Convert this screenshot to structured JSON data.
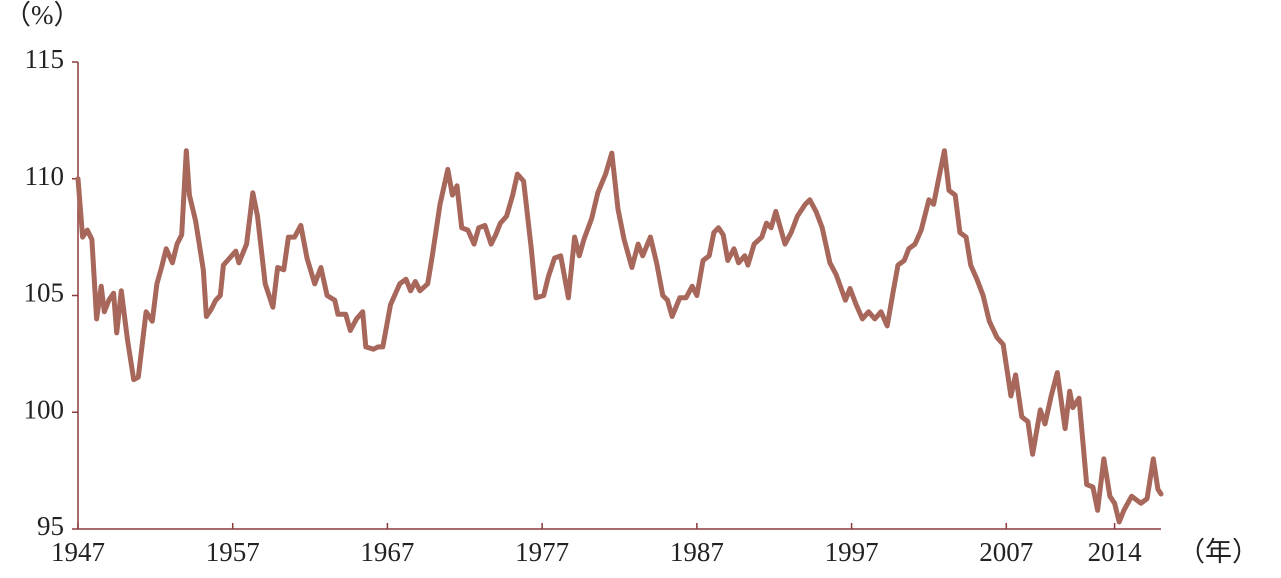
{
  "chart_data": {
    "type": "line",
    "y_label": "（%）",
    "x_label": "（年）",
    "xlim": [
      1947,
      2017
    ],
    "xticks": [
      1947,
      1957,
      1967,
      1977,
      1987,
      1997,
      2007,
      2014
    ],
    "ylim": [
      95,
      115
    ],
    "yticks": [
      95,
      100,
      105,
      110,
      115
    ],
    "series": [
      {
        "color": "#a8675b",
        "x": [
          1947.0,
          1947.3,
          1947.6,
          1947.9,
          1948.2,
          1948.5,
          1948.7,
          1949.0,
          1949.3,
          1949.5,
          1949.8,
          1950.2,
          1950.6,
          1950.9,
          1951.4,
          1951.8,
          1952.1,
          1952.4,
          1952.7,
          1953.1,
          1953.4,
          1953.7,
          1954.0,
          1954.2,
          1954.6,
          1955.1,
          1955.3,
          1955.6,
          1955.9,
          1956.2,
          1956.4,
          1956.8,
          1957.2,
          1957.4,
          1957.9,
          1958.3,
          1958.6,
          1959.1,
          1959.6,
          1959.9,
          1960.3,
          1960.6,
          1961.0,
          1961.4,
          1961.8,
          1962.3,
          1962.7,
          1963.1,
          1963.6,
          1963.8,
          1964.3,
          1964.6,
          1965.0,
          1965.4,
          1965.6,
          1966.1,
          1966.4,
          1966.7,
          1967.2,
          1967.4,
          1967.8,
          1968.2,
          1968.5,
          1968.8,
          1969.1,
          1969.6,
          1969.9,
          1970.4,
          1970.9,
          1971.2,
          1971.5,
          1971.8,
          1972.2,
          1972.6,
          1972.9,
          1973.3,
          1973.7,
          1974.0,
          1974.3,
          1974.7,
          1975.1,
          1975.4,
          1975.8,
          1976.3,
          1976.6,
          1977.1,
          1977.4,
          1977.8,
          1978.2,
          1978.7,
          1979.1,
          1979.4,
          1979.7,
          1980.2,
          1980.6,
          1981.1,
          1981.5,
          1981.9,
          1982.3,
          1982.8,
          1983.2,
          1983.5,
          1984.0,
          1984.4,
          1984.8,
          1985.1,
          1985.4,
          1985.9,
          1986.3,
          1986.7,
          1987.0,
          1987.4,
          1987.8,
          1988.1,
          1988.4,
          1988.7,
          1989.0,
          1989.4,
          1989.7,
          1990.1,
          1990.3,
          1990.7,
          1991.2,
          1991.5,
          1991.8,
          1992.1,
          1992.4,
          1992.7,
          1993.1,
          1993.5,
          1994.0,
          1994.3,
          1994.7,
          1995.1,
          1995.6,
          1996.0,
          1996.6,
          1996.9,
          1997.3,
          1997.7,
          1998.1,
          1998.5,
          1998.9,
          1999.3,
          1999.7,
          2000.0,
          2000.4,
          2000.7,
          2001.1,
          2001.5,
          2002.0,
          2002.3,
          2002.6,
          2003.0,
          2003.3,
          2003.7,
          2004.0,
          2004.4,
          2004.7,
          2005.1,
          2005.5,
          2005.9,
          2006.4,
          2006.8,
          2007.3,
          2007.6,
          2008.0,
          2008.4,
          2008.7,
          2009.2,
          2009.5,
          2009.9,
          2010.3,
          2010.8,
          2011.1,
          2011.3,
          2011.7,
          2012.2,
          2012.6,
          2012.9,
          2013.3,
          2013.7,
          2014.0,
          2014.3,
          2014.6,
          2015.1,
          2015.7,
          2016.1,
          2016.5,
          2016.8,
          2017.0
        ],
        "values": [
          110.0,
          107.5,
          107.8,
          107.4,
          104.0,
          105.4,
          104.3,
          104.8,
          105.1,
          103.4,
          105.2,
          103.1,
          101.4,
          101.5,
          104.3,
          103.9,
          105.5,
          106.2,
          107.0,
          106.4,
          107.2,
          107.6,
          111.2,
          109.3,
          108.2,
          106.1,
          104.1,
          104.4,
          104.8,
          105.0,
          106.3,
          106.6,
          106.9,
          106.4,
          107.2,
          109.4,
          108.4,
          105.5,
          104.5,
          106.2,
          106.1,
          107.5,
          107.5,
          108.0,
          106.6,
          105.5,
          106.2,
          105.0,
          104.8,
          104.2,
          104.2,
          103.5,
          104.0,
          104.3,
          102.8,
          102.7,
          102.8,
          102.8,
          104.6,
          104.9,
          105.5,
          105.7,
          105.2,
          105.6,
          105.2,
          105.5,
          106.7,
          108.9,
          110.4,
          109.3,
          109.7,
          107.9,
          107.8,
          107.2,
          107.9,
          108.0,
          107.2,
          107.6,
          108.1,
          108.4,
          109.3,
          110.2,
          109.9,
          107.0,
          104.9,
          105.0,
          105.8,
          106.6,
          106.7,
          104.9,
          107.5,
          106.7,
          107.4,
          108.3,
          109.4,
          110.2,
          111.1,
          108.7,
          107.4,
          106.2,
          107.2,
          106.7,
          107.5,
          106.4,
          105.0,
          104.8,
          104.1,
          104.9,
          104.9,
          105.4,
          105.0,
          106.5,
          106.7,
          107.7,
          107.9,
          107.6,
          106.5,
          107.0,
          106.4,
          106.7,
          106.3,
          107.2,
          107.5,
          108.1,
          107.9,
          108.6,
          107.9,
          107.2,
          107.7,
          108.4,
          108.9,
          109.1,
          108.6,
          107.9,
          106.4,
          105.9,
          104.8,
          105.3,
          104.6,
          104.0,
          104.3,
          104.0,
          104.3,
          103.7,
          105.2,
          106.3,
          106.5,
          107.0,
          107.2,
          107.8,
          109.1,
          108.9,
          109.9,
          111.2,
          109.5,
          109.3,
          107.7,
          107.5,
          106.3,
          105.7,
          105.0,
          103.9,
          103.2,
          102.9,
          100.7,
          101.6,
          99.8,
          99.6,
          98.2,
          100.1,
          99.5,
          100.7,
          101.7,
          99.3,
          100.9,
          100.2,
          100.6,
          96.9,
          96.8,
          95.8,
          98.0,
          96.4,
          96.1,
          95.3,
          95.8,
          96.4,
          96.1,
          96.3,
          98.0,
          96.7,
          96.5
        ]
      }
    ]
  }
}
